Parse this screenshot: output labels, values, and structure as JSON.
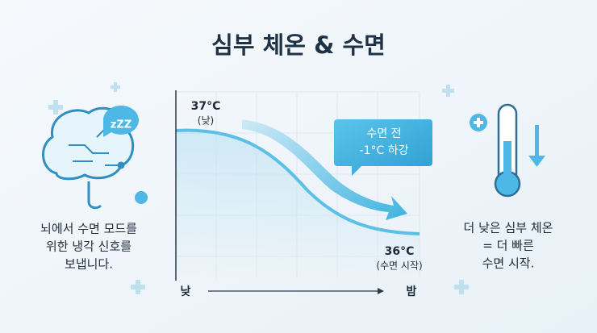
{
  "header": {
    "title": "심부 체온 & 수면"
  },
  "left_panel": {
    "icon_label": "zZZ",
    "lines": [
      "뇌에서 수면 모드를",
      "위한 냉각 신호를",
      "보냅니다."
    ]
  },
  "graph": {
    "start_label": "37°C",
    "start_note": "(낮)",
    "end_label": "36°C",
    "end_note": "(수면 시작)",
    "callout": [
      "수면 전",
      "-1°C 하강"
    ],
    "x_start": "낮",
    "x_end": "밤"
  },
  "right_panel": {
    "lines": [
      "더 낮은 심부 체온",
      "= 더 빠른",
      "수면 시작."
    ]
  }
}
